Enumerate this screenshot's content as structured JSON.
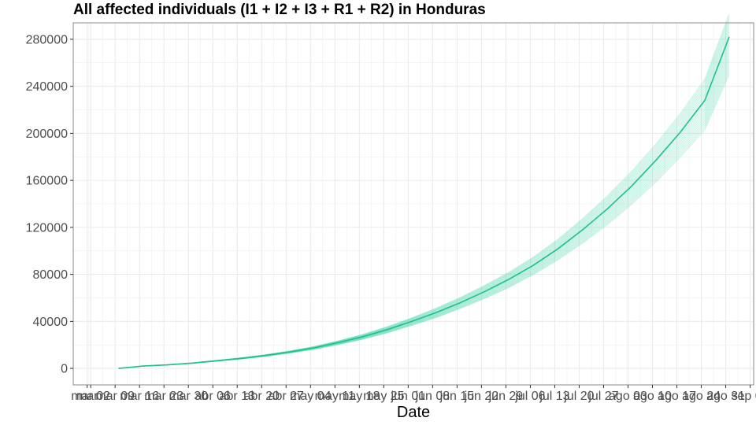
{
  "chart_data": {
    "type": "line",
    "title": "All affected individuals (I1 + I2 + I3 + R1 + R2) in  Honduras",
    "xlabel": "Date",
    "ylabel": "",
    "grid": true,
    "legend": "none",
    "colors": {
      "line": "#1fbf8f",
      "ensemble": "#5fd9b4",
      "grid": "#ebebeb",
      "border": "#8a8a8a",
      "tick": "#333333"
    },
    "ylim": [
      -14000,
      294000
    ],
    "yticks": [
      0,
      40000,
      80000,
      120000,
      160000,
      200000,
      240000,
      280000
    ],
    "ytick_labels": [
      "0",
      "40000",
      "80000",
      "120000",
      "160000",
      "200000",
      "240000",
      "280000"
    ],
    "xlim": [
      "2020-02-26",
      "2020-09-08"
    ],
    "xtick_dates": [
      "2020-03-01",
      "2020-03-02",
      "2020-03-09",
      "2020-03-16",
      "2020-03-23",
      "2020-03-30",
      "2020-04-06",
      "2020-04-13",
      "2020-04-20",
      "2020-04-27",
      "2020-05-04",
      "2020-05-11",
      "2020-05-18",
      "2020-05-25",
      "2020-06-01",
      "2020-06-08",
      "2020-06-15",
      "2020-06-22",
      "2020-06-29",
      "2020-07-06",
      "2020-07-13",
      "2020-07-20",
      "2020-07-27",
      "2020-08-03",
      "2020-08-10",
      "2020-08-17",
      "2020-08-24",
      "2020-08-31",
      "2020-09-07"
    ],
    "xtick_labels": [
      "mar",
      "mar 02",
      "mar 09",
      "mar 16",
      "mar 23",
      "mar 30",
      "abr 06",
      "abr 13",
      "abr 20",
      "abr 27",
      "may 04",
      "may 11",
      "may 18",
      "may 25",
      "jun 01",
      "jun 08",
      "jun 15",
      "jun 22",
      "jun 29",
      "jul 06",
      "jul 13",
      "jul 20",
      "jul 27",
      "ago 03",
      "ago 10",
      "ago 17",
      "ago 24",
      "ago 31",
      "sep 07"
    ],
    "series": [
      {
        "x": [
          "2020-03-10",
          "2020-03-17",
          "2020-03-24",
          "2020-03-31",
          "2020-04-07",
          "2020-04-14",
          "2020-04-21",
          "2020-04-28",
          "2020-05-05",
          "2020-05-12",
          "2020-05-19",
          "2020-05-26",
          "2020-06-02",
          "2020-06-09",
          "2020-06-16",
          "2020-06-23",
          "2020-06-30",
          "2020-07-07",
          "2020-07-14",
          "2020-07-21",
          "2020-07-28",
          "2020-08-04",
          "2020-08-11",
          "2020-08-18",
          "2020-08-25",
          "2020-09-01"
        ],
        "y": [
          0,
          2000,
          3000,
          4500,
          6500,
          8500,
          11000,
          14000,
          17500,
          22000,
          27000,
          33000,
          40000,
          47500,
          56000,
          65500,
          76000,
          88000,
          102000,
          118000,
          135500,
          155000,
          177000,
          201000,
          228000,
          282000
        ],
        "lower": [
          0,
          2000,
          3000,
          4300,
          6100,
          8000,
          10200,
          13000,
          16200,
          20200,
          24800,
          30200,
          36500,
          43200,
          51000,
          59500,
          69000,
          80000,
          92500,
          106500,
          122000,
          139500,
          158500,
          180000,
          203000,
          250000
        ],
        "upper": [
          0,
          2000,
          3000,
          4700,
          6800,
          9000,
          11600,
          14800,
          18600,
          23500,
          29000,
          35500,
          43000,
          51200,
          60500,
          70800,
          82000,
          95000,
          110000,
          127500,
          146500,
          167500,
          191000,
          217000,
          246000,
          302000
        ]
      }
    ]
  }
}
